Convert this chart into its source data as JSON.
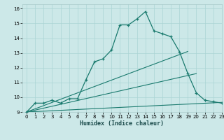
{
  "xlabel": "Humidex (Indice chaleur)",
  "xlim": [
    -0.5,
    23
  ],
  "ylim": [
    9,
    16.3
  ],
  "xticks": [
    0,
    1,
    2,
    3,
    4,
    5,
    6,
    7,
    8,
    9,
    10,
    11,
    12,
    13,
    14,
    15,
    16,
    17,
    18,
    19,
    20,
    21,
    22,
    23
  ],
  "yticks": [
    9,
    10,
    11,
    12,
    13,
    14,
    15,
    16
  ],
  "bg_color": "#cce8e8",
  "line_color": "#1a7a6e",
  "grid_color": "#aad4d4",
  "line1_x": [
    0,
    1,
    2,
    3,
    4,
    5,
    6,
    7,
    8,
    9,
    10,
    11,
    12,
    13,
    14,
    15,
    16,
    17,
    18,
    19,
    20,
    21,
    22,
    23
  ],
  "line1_y": [
    9.0,
    9.6,
    9.6,
    9.8,
    9.6,
    9.9,
    9.9,
    11.2,
    12.4,
    12.6,
    13.2,
    14.9,
    14.9,
    15.3,
    15.8,
    14.5,
    14.3,
    14.1,
    13.1,
    11.6,
    10.3,
    9.8,
    9.7,
    9.6
  ],
  "line2_x": [
    0,
    19
  ],
  "line2_y": [
    9.0,
    13.1
  ],
  "line3_x": [
    0,
    20
  ],
  "line3_y": [
    9.0,
    11.6
  ],
  "line4_x": [
    0,
    23
  ],
  "line4_y": [
    9.0,
    9.65
  ]
}
